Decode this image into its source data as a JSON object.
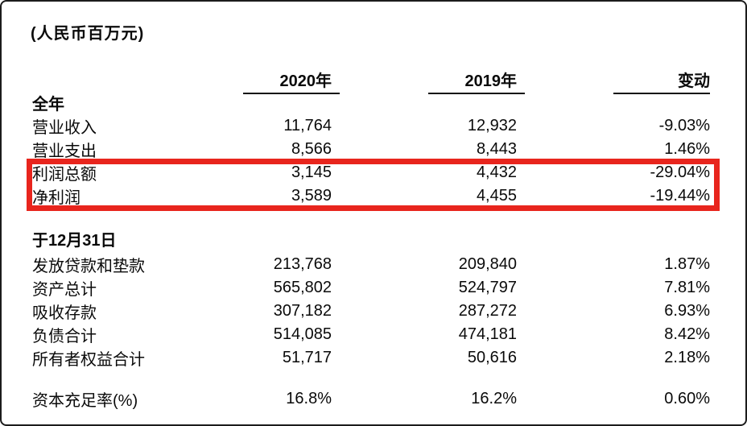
{
  "unit_note": "(人民币百万元)",
  "colors": {
    "highlight_box": "#e8251d"
  },
  "table": {
    "columns": [
      "2020年",
      "2019年",
      "变动"
    ],
    "sections": [
      {
        "heading": "全年",
        "rows": [
          {
            "label": "营业收入",
            "y2020": "11,764",
            "y2019": "12,932",
            "change": "-9.03%"
          },
          {
            "label": "营业支出",
            "y2020": "8,566",
            "y2019": "8,443",
            "change": "1.46%"
          },
          {
            "label": "利润总额",
            "y2020": "3,145",
            "y2019": "4,432",
            "change": "-29.04%"
          },
          {
            "label": "净利润",
            "y2020": "3,589",
            "y2019": "4,455",
            "change": "-19.44%"
          }
        ]
      },
      {
        "heading": "于12月31日",
        "rows": [
          {
            "label": "发放贷款和垫款",
            "y2020": "213,768",
            "y2019": "209,840",
            "change": "1.87%"
          },
          {
            "label": "资产总计",
            "y2020": "565,802",
            "y2019": "524,797",
            "change": "7.81%"
          },
          {
            "label": "吸收存款",
            "y2020": "307,182",
            "y2019": "287,272",
            "change": "6.93%"
          },
          {
            "label": "负债合计",
            "y2020": "514,085",
            "y2019": "474,181",
            "change": "8.42%"
          },
          {
            "label": "所有者权益合计",
            "y2020": "51,717",
            "y2019": "50,616",
            "change": "2.18%"
          }
        ]
      },
      {
        "heading": "",
        "rows": [
          {
            "label": "资本充足率(%)",
            "y2020": "16.8%",
            "y2019": "16.2%",
            "change": "0.60%"
          }
        ]
      }
    ],
    "annotation": {
      "type": "red-highlight-box",
      "highlighted_rows": [
        "利润总额",
        "净利润"
      ]
    }
  }
}
